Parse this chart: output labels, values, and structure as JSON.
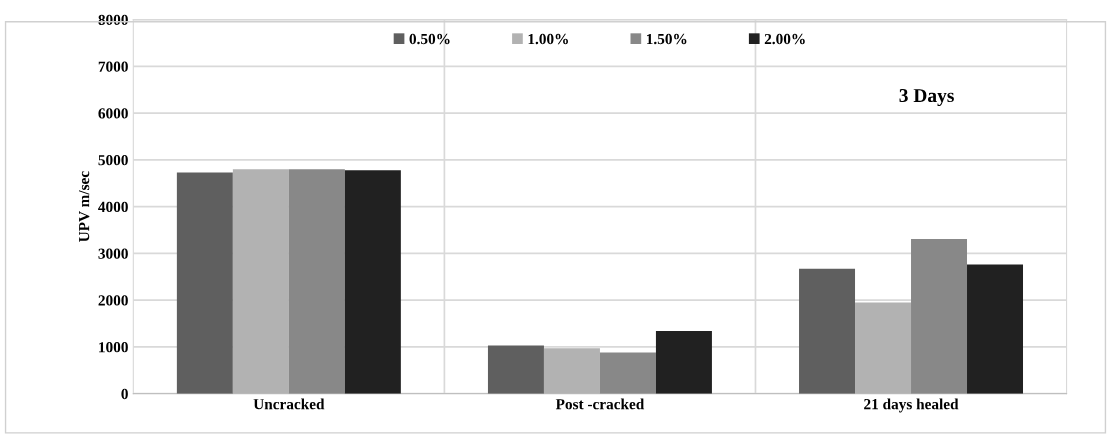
{
  "chart_data": {
    "type": "bar",
    "ylabel": "UPV m/sec",
    "categories": [
      "Uncracked",
      "Post -cracked",
      "21 days healed"
    ],
    "series": [
      {
        "name": "0.50%",
        "color": "#5f5f5f",
        "values": [
          4730,
          1030,
          2670
        ]
      },
      {
        "name": "1.00%",
        "color": "#b2b2b2",
        "values": [
          4800,
          970,
          1950
        ]
      },
      {
        "name": "1.50%",
        "color": "#888888",
        "values": [
          4800,
          880,
          3310
        ]
      },
      {
        "name": "2.00%",
        "color": "#212121",
        "values": [
          4780,
          1340,
          2760
        ]
      }
    ],
    "ylim": [
      0,
      8000
    ],
    "yticks": [
      0,
      1000,
      2000,
      3000,
      4000,
      5000,
      6000,
      7000,
      8000
    ],
    "grid": true,
    "legend": "top",
    "annotations": [
      "3 Days"
    ]
  }
}
